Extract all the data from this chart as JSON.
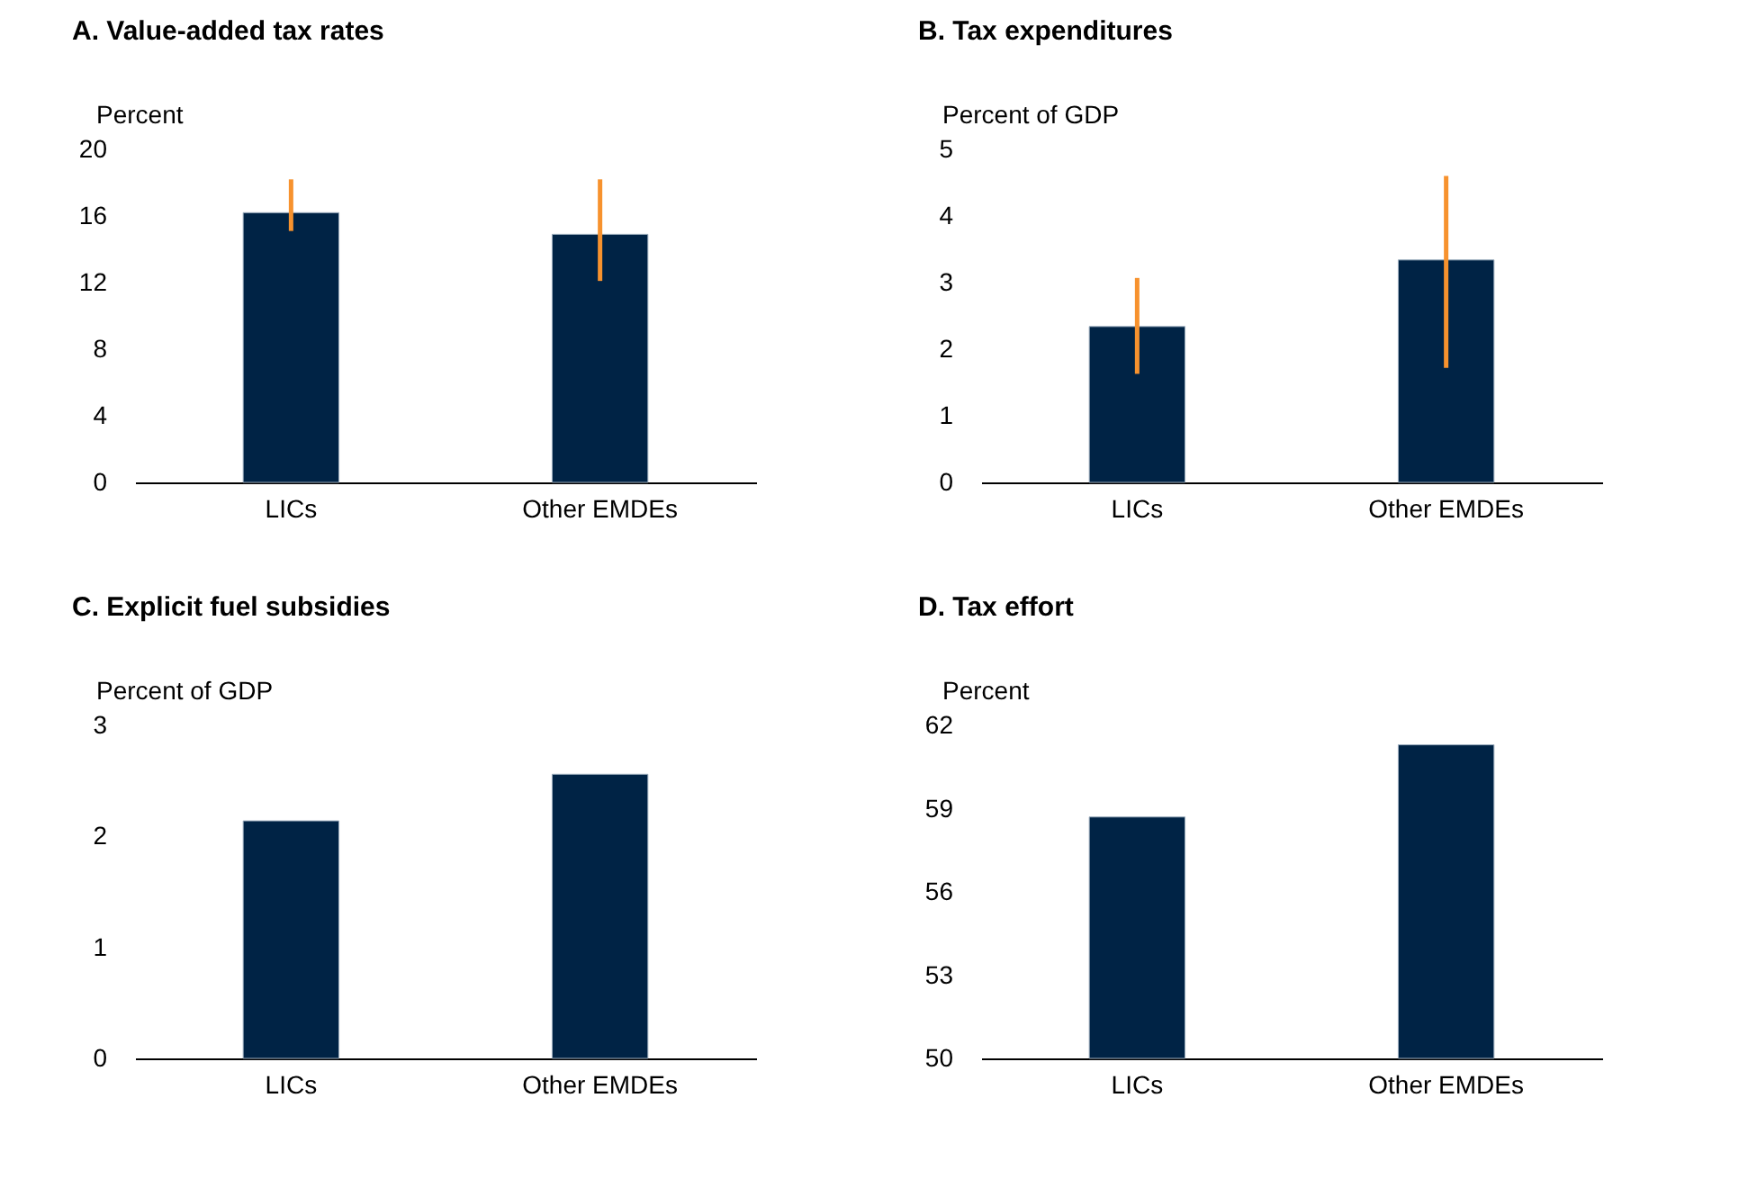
{
  "chart_data": [
    {
      "type": "bar",
      "title": "A. Value-added tax rates",
      "ylabel": "Percent",
      "categories": [
        "LICs",
        "Other EMDEs"
      ],
      "values": [
        16.2,
        14.9
      ],
      "color": "#002345",
      "errors": [
        [
          15.1,
          18.2
        ],
        [
          12.1,
          18.2
        ]
      ],
      "ylim": [
        0,
        20
      ],
      "yticks": [
        0,
        4,
        8,
        12,
        16,
        20
      ],
      "grid": false
    },
    {
      "type": "bar",
      "title": "B. Tax expenditures",
      "ylabel": "Percent of GDP",
      "categories": [
        "LICs",
        "Other EMDEs"
      ],
      "values": [
        2.34,
        3.34
      ],
      "color": "#002345",
      "errors": [
        [
          1.63,
          3.07
        ],
        [
          1.72,
          4.6
        ]
      ],
      "ylim": [
        0,
        5
      ],
      "yticks": [
        0,
        1,
        2,
        3,
        4,
        5
      ],
      "grid": false
    },
    {
      "type": "bar",
      "title": "C. Explicit fuel subsidies",
      "ylabel": "Percent of GDP",
      "categories": [
        "LICs",
        "Other EMDEs"
      ],
      "values": [
        2.14,
        2.56
      ],
      "color": "#002345",
      "ylim": [
        0,
        3
      ],
      "yticks": [
        0,
        1,
        2,
        3
      ],
      "grid": false
    },
    {
      "type": "bar",
      "title": "D. Tax effort",
      "ylabel": "Percent",
      "categories": [
        "LICs",
        "Other EMDEs"
      ],
      "values": [
        58.7,
        61.3
      ],
      "color": "#002345",
      "ylim": [
        50,
        62
      ],
      "yticks": [
        50,
        53,
        56,
        59,
        62
      ],
      "grid": false
    }
  ]
}
